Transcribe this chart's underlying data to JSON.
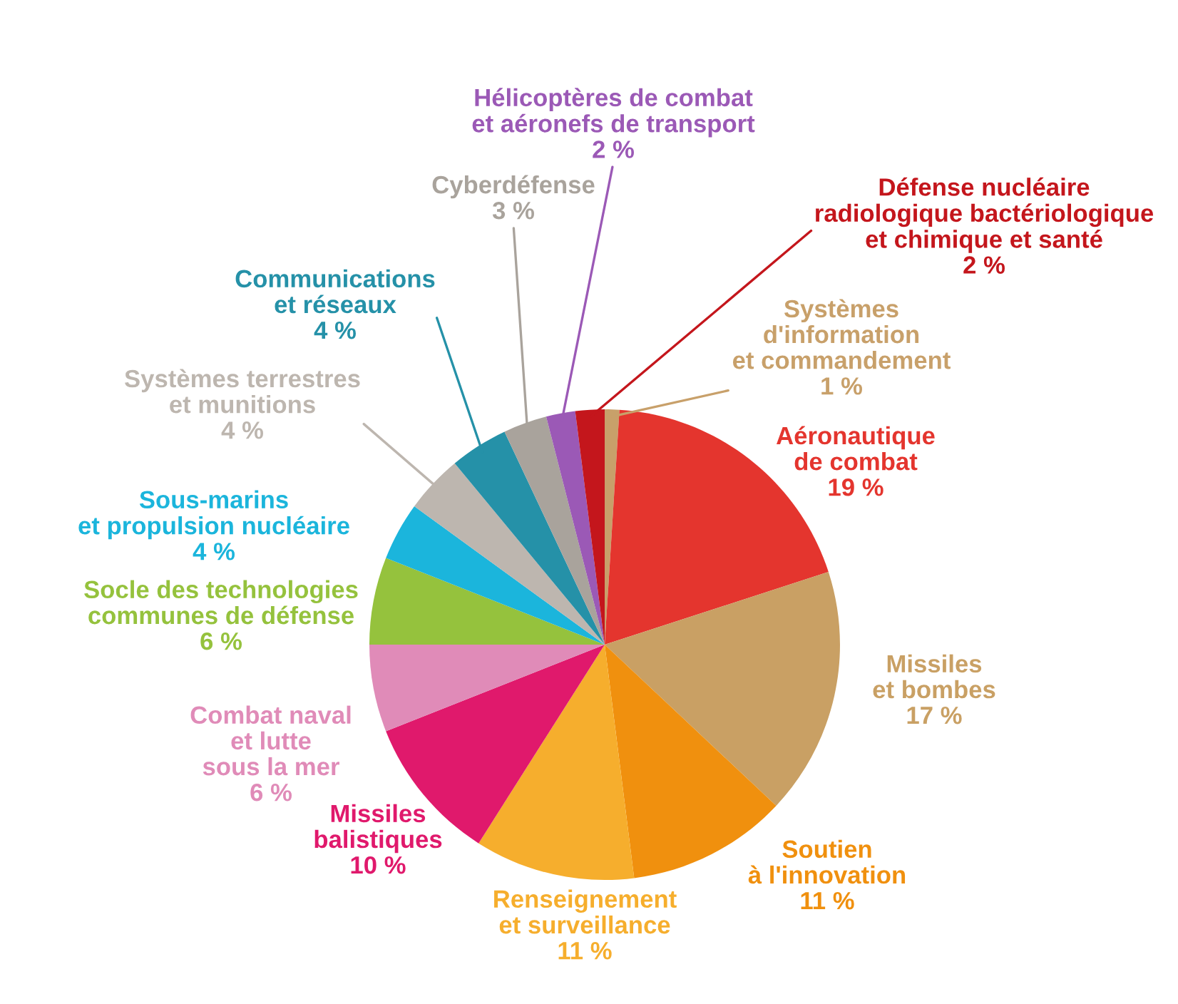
{
  "chart_data": {
    "type": "pie",
    "categories": [
      "Systèmes\nd'information\net commandement",
      "Aéronautique\nde combat",
      "Missiles\net bombes",
      "Soutien\nà l'innovation",
      "Renseignement\net surveillance",
      "Missiles\nbalistiques",
      "Combat naval\net lutte\nsous la mer",
      "Socle des technologies\ncommunes de défense",
      "Sous-marins\net propulsion nucléaire",
      "Systèmes terrestres\net munitions",
      "Communications\net réseaux",
      "Cyberdéfense",
      "Hélicoptères de combat\net aéronefs de transport",
      "Défense nucléaire\nradiologique bactériologique\net chimique et santé"
    ],
    "values": [
      1,
      19,
      17,
      11,
      11,
      10,
      6,
      6,
      4,
      4,
      4,
      3,
      2,
      2
    ],
    "value_labels": [
      "1 %",
      "19 %",
      "17 %",
      "11 %",
      "11 %",
      "10 %",
      "6 %",
      "6 %",
      "4 %",
      "4 %",
      "4 %",
      "3 %",
      "2 %",
      "2 %"
    ],
    "colors": [
      "#c8a06a",
      "#e4352e",
      "#c9a064",
      "#f0900e",
      "#f6ae2d",
      "#e0196c",
      "#e08bb8",
      "#95c23d",
      "#1bb5dc",
      "#bdb6af",
      "#2591a8",
      "#a9a39c",
      "#9b59b6",
      "#c4161c"
    ]
  }
}
